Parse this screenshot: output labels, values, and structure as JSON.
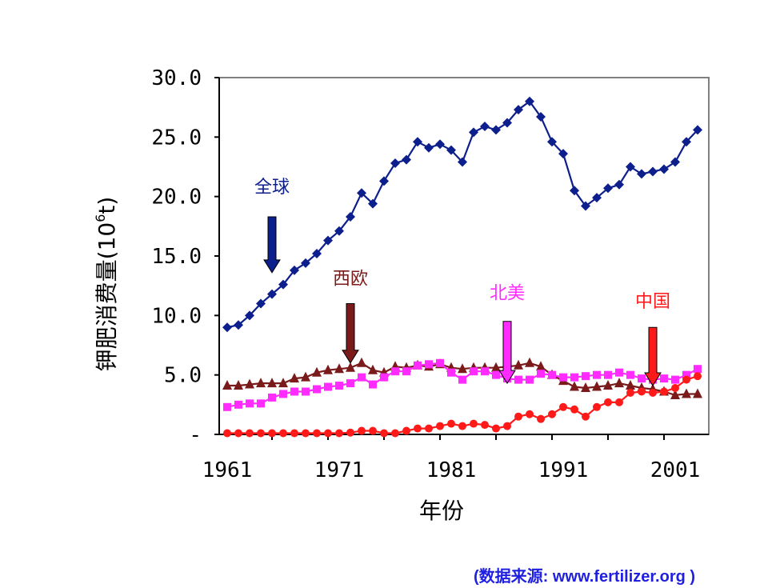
{
  "chart_data": {
    "type": "line",
    "title": "",
    "xlabel": "年份",
    "ylabel": "钾肥消费量(10⁶t)",
    "ylabel_main": "钾肥消费量(10",
    "ylabel_sup": "6",
    "ylabel_tail": "t)",
    "xlim": [
      1961,
      2004
    ],
    "ylim": [
      0,
      30
    ],
    "x_ticks": [
      "1961",
      "1971",
      "1981",
      "1991",
      "2001"
    ],
    "y_ticks": [
      "-",
      "5.0",
      "10.0",
      "15.0",
      "20.0",
      "25.0",
      "30.0"
    ],
    "grid": false,
    "legend": "annotated arrows",
    "x": [
      1961,
      1962,
      1963,
      1964,
      1965,
      1966,
      1967,
      1968,
      1969,
      1970,
      1971,
      1972,
      1973,
      1974,
      1975,
      1976,
      1977,
      1978,
      1979,
      1980,
      1981,
      1982,
      1983,
      1984,
      1985,
      1986,
      1987,
      1988,
      1989,
      1990,
      1991,
      1992,
      1993,
      1994,
      1995,
      1996,
      1997,
      1998,
      1999,
      2000,
      2001,
      2002,
      2003
    ],
    "series": [
      {
        "name": "全球",
        "color": "#0d1f8c",
        "marker": "diamond",
        "values": [
          9.0,
          9.2,
          10.0,
          11.0,
          11.8,
          12.6,
          13.8,
          14.4,
          15.2,
          16.3,
          17.1,
          18.3,
          20.3,
          19.4,
          21.3,
          22.8,
          23.1,
          24.6,
          24.1,
          24.4,
          23.9,
          22.9,
          25.4,
          25.9,
          25.6,
          26.2,
          27.3,
          28.0,
          26.7,
          24.6,
          23.6,
          20.5,
          19.2,
          19.9,
          20.7,
          21.0,
          22.5,
          21.9,
          22.1,
          22.3,
          22.9,
          24.6,
          25.6
        ]
      },
      {
        "name": "西欧",
        "color": "#7b1a1a",
        "marker": "triangle",
        "values": [
          4.1,
          4.1,
          4.2,
          4.3,
          4.3,
          4.3,
          4.7,
          4.8,
          5.2,
          5.4,
          5.5,
          5.6,
          6.0,
          5.4,
          5.2,
          5.7,
          5.6,
          5.8,
          5.7,
          5.9,
          5.6,
          5.5,
          5.6,
          5.6,
          5.6,
          5.7,
          5.8,
          6.0,
          5.7,
          5.0,
          4.5,
          4.0,
          3.9,
          4.0,
          4.1,
          4.3,
          4.1,
          3.9,
          3.8,
          3.6,
          3.3,
          3.4,
          3.4
        ]
      },
      {
        "name": "北美",
        "color": "#ff2bff",
        "marker": "square",
        "values": [
          2.3,
          2.5,
          2.6,
          2.6,
          3.1,
          3.4,
          3.6,
          3.6,
          3.8,
          4.0,
          4.1,
          4.3,
          4.8,
          4.2,
          4.8,
          5.3,
          5.3,
          5.8,
          5.9,
          6.0,
          5.2,
          4.6,
          5.3,
          5.3,
          5.0,
          4.7,
          4.6,
          4.6,
          5.1,
          5.0,
          4.8,
          4.8,
          4.9,
          5.0,
          5.0,
          5.2,
          5.0,
          4.7,
          4.6,
          4.7,
          4.6,
          5.0,
          5.5
        ]
      },
      {
        "name": "中国",
        "color": "#ff1a1a",
        "marker": "circle",
        "values": [
          0.1,
          0.1,
          0.1,
          0.1,
          0.1,
          0.1,
          0.1,
          0.1,
          0.1,
          0.1,
          0.1,
          0.15,
          0.3,
          0.3,
          0.1,
          0.1,
          0.3,
          0.5,
          0.5,
          0.7,
          0.9,
          0.7,
          0.9,
          0.8,
          0.5,
          0.7,
          1.5,
          1.7,
          1.3,
          1.7,
          2.3,
          2.1,
          1.5,
          2.3,
          2.7,
          2.7,
          3.5,
          3.6,
          3.5,
          3.6,
          3.9,
          4.6,
          4.9
        ]
      }
    ],
    "annotations": [
      {
        "label": "全球",
        "color": "#0d1f8c",
        "x": 1965,
        "y_text": 20.3,
        "y_from": 18.3,
        "y_to": 13.6
      },
      {
        "label": "西欧",
        "color": "#7b1a1a",
        "x": 1972,
        "y_text": 12.6,
        "y_from": 11.0,
        "y_to": 6.0
      },
      {
        "label": "北美",
        "color": "#ff2bff",
        "x": 1986,
        "y_text": 11.4,
        "y_from": 9.5,
        "y_to": 4.3
      },
      {
        "label": "中国",
        "color": "#ff1a1a",
        "x": 1999,
        "y_text": 10.7,
        "y_from": 9.0,
        "y_to": 4.1
      }
    ]
  },
  "source_note": "(数据来源: www.fertilizer.org )"
}
